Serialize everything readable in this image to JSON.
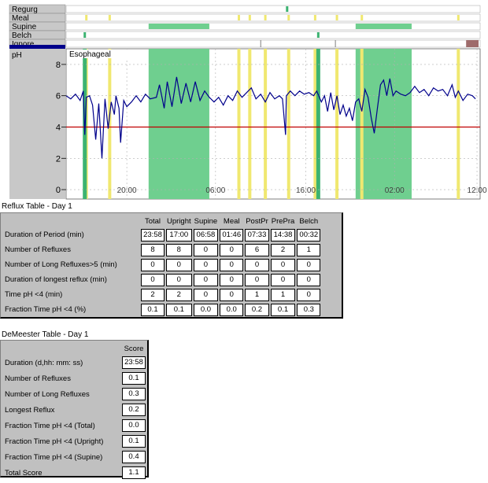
{
  "colors": {
    "event_green": "#3cb371",
    "period_green": "#6fcf8f",
    "meal_yellow": "#f0e870",
    "trace": "#00008b",
    "threshold": "#c00000",
    "ignore_mark": "#9e6b6b",
    "selected_row": "#00008b"
  },
  "event_rows": [
    {
      "label": "Regurg"
    },
    {
      "label": "Meal"
    },
    {
      "label": "Supine"
    },
    {
      "label": "Belch"
    },
    {
      "label": "Ignore"
    }
  ],
  "chart_data": {
    "type": "line",
    "series_label": "pH",
    "channel_label": "Esophageal",
    "ylim": [
      -0.6,
      9
    ],
    "yticks": [
      0,
      2,
      4,
      6,
      8
    ],
    "threshold": 4,
    "x_range_hours": [
      0,
      24
    ],
    "x_tick_labels": [
      {
        "label": "20:00",
        "hour": 3.9
      },
      {
        "label": "06:00",
        "hour": 9.6
      },
      {
        "label": "16:00",
        "hour": 15.4
      },
      {
        "label": "02:00",
        "hour": 21.1
      },
      {
        "label": "12:00",
        "hour": 26.4
      }
    ],
    "supine_periods": [
      [
        5.3,
        9.2
      ],
      [
        18.6,
        22.2
      ]
    ],
    "meal_markers": [
      1.3,
      2.8,
      11.1,
      11.8,
      12.8,
      14.3,
      16.0,
      17.4,
      19.0,
      25.2
    ],
    "reflux_markers": [
      1.2,
      16.2
    ],
    "regurg_markers": [
      14.2
    ],
    "belch_markers": [
      1.2,
      16.2
    ],
    "ignore_periods": [
      [
        25.7,
        26.5
      ]
    ],
    "trace": [
      [
        0.0,
        6.0
      ],
      [
        0.3,
        5.8
      ],
      [
        0.6,
        6.1
      ],
      [
        0.9,
        5.7
      ],
      [
        1.1,
        6.3
      ],
      [
        1.2,
        3.5
      ],
      [
        1.3,
        5.9
      ],
      [
        1.5,
        6.0
      ],
      [
        1.7,
        5.4
      ],
      [
        1.9,
        3.2
      ],
      [
        2.1,
        5.5
      ],
      [
        2.3,
        2.0
      ],
      [
        2.5,
        5.8
      ],
      [
        2.7,
        3.9
      ],
      [
        2.9,
        5.6
      ],
      [
        3.1,
        4.8
      ],
      [
        3.2,
        6.0
      ],
      [
        3.4,
        5.2
      ],
      [
        3.5,
        3.0
      ],
      [
        3.7,
        5.7
      ],
      [
        3.9,
        5.3
      ],
      [
        4.2,
        5.6
      ],
      [
        4.5,
        6.0
      ],
      [
        4.8,
        5.6
      ],
      [
        5.1,
        6.1
      ],
      [
        5.4,
        5.8
      ],
      [
        5.8,
        5.9
      ],
      [
        6.0,
        6.7
      ],
      [
        6.3,
        5.2
      ],
      [
        6.5,
        6.9
      ],
      [
        6.8,
        5.3
      ],
      [
        7.1,
        7.2
      ],
      [
        7.4,
        5.5
      ],
      [
        7.7,
        6.8
      ],
      [
        8.0,
        5.6
      ],
      [
        8.3,
        6.9
      ],
      [
        8.6,
        5.7
      ],
      [
        8.9,
        6.3
      ],
      [
        9.2,
        5.9
      ],
      [
        9.5,
        5.6
      ],
      [
        9.8,
        5.9
      ],
      [
        10.1,
        5.4
      ],
      [
        10.4,
        6.0
      ],
      [
        10.7,
        5.7
      ],
      [
        11.0,
        6.3
      ],
      [
        11.3,
        5.9
      ],
      [
        11.6,
        6.2
      ],
      [
        11.9,
        6.5
      ],
      [
        12.2,
        5.8
      ],
      [
        12.5,
        6.1
      ],
      [
        12.8,
        5.6
      ],
      [
        13.1,
        6.2
      ],
      [
        13.4,
        5.8
      ],
      [
        13.7,
        6.0
      ],
      [
        13.9,
        5.8
      ],
      [
        14.1,
        3.5
      ],
      [
        14.15,
        6.0
      ],
      [
        14.4,
        6.3
      ],
      [
        14.7,
        6.0
      ],
      [
        15.0,
        6.3
      ],
      [
        15.3,
        6.1
      ],
      [
        15.6,
        6.2
      ],
      [
        15.9,
        6.0
      ],
      [
        16.1,
        6.3
      ],
      [
        16.4,
        5.6
      ],
      [
        16.6,
        6.0
      ],
      [
        16.8,
        5.0
      ],
      [
        17.0,
        6.2
      ],
      [
        17.2,
        5.1
      ],
      [
        17.4,
        6.0
      ],
      [
        17.6,
        4.8
      ],
      [
        17.8,
        5.4
      ],
      [
        18.0,
        4.7
      ],
      [
        18.2,
        5.2
      ],
      [
        18.4,
        4.4
      ],
      [
        18.6,
        5.6
      ],
      [
        18.8,
        5.8
      ],
      [
        19.0,
        5.0
      ],
      [
        19.2,
        6.4
      ],
      [
        19.4,
        5.9
      ],
      [
        19.6,
        4.6
      ],
      [
        19.8,
        3.6
      ],
      [
        20.0,
        5.2
      ],
      [
        20.2,
        6.7
      ],
      [
        20.4,
        7.0
      ],
      [
        20.6,
        6.0
      ],
      [
        20.8,
        7.1
      ],
      [
        21.0,
        6.0
      ],
      [
        21.2,
        6.3
      ],
      [
        21.5,
        6.1
      ],
      [
        21.8,
        6.0
      ],
      [
        22.1,
        6.2
      ],
      [
        22.4,
        6.6
      ],
      [
        22.7,
        6.2
      ],
      [
        23.0,
        6.4
      ],
      [
        23.3,
        6.0
      ],
      [
        23.6,
        6.5
      ],
      [
        23.9,
        6.3
      ],
      [
        24.2,
        6.4
      ],
      [
        24.5,
        6.0
      ],
      [
        24.8,
        6.7
      ],
      [
        25.0,
        5.9
      ],
      [
        25.2,
        6.3
      ],
      [
        25.5,
        5.7
      ],
      [
        25.8,
        6.1
      ],
      [
        26.1,
        6.0
      ],
      [
        26.3,
        5.8
      ]
    ]
  },
  "reflux_table": {
    "title": "Reflux Table - Day 1",
    "columns": [
      "Total",
      "Upright",
      "Supine",
      "Meal",
      "PostPr",
      "PrePra",
      "Belch"
    ],
    "rows": [
      {
        "label": "Duration of Period (min)",
        "values": [
          "23:58",
          "17:00",
          "06:58",
          "01:46",
          "07:33",
          "14:38",
          "00:32"
        ]
      },
      {
        "label": "Number of Refluxes",
        "values": [
          "8",
          "8",
          "0",
          "0",
          "6",
          "2",
          "1"
        ]
      },
      {
        "label": "Number of Long Refluxes>5  (min)",
        "values": [
          "0",
          "0",
          "0",
          "0",
          "0",
          "0",
          "0"
        ]
      },
      {
        "label": "Duration of longest reflux (min)",
        "values": [
          "0",
          "0",
          "0",
          "0",
          "0",
          "0",
          "0"
        ]
      },
      {
        "label": "Time pH <4  (min)",
        "values": [
          "2",
          "2",
          "0",
          "0",
          "1",
          "1",
          "0"
        ]
      },
      {
        "label": "Fraction Time pH <4  (%)",
        "values": [
          "0.1",
          "0.1",
          "0.0",
          "0.0",
          "0.2",
          "0.1",
          "0.3"
        ]
      }
    ]
  },
  "demeester_table": {
    "title": "DeMeester Table - Day 1",
    "column": "Score",
    "rows": [
      {
        "label": "Duration (d,hh: mm: ss)",
        "value": "23:58"
      },
      {
        "label": "Number of Refluxes",
        "value": "0.1"
      },
      {
        "label": "Number of Long Refluxes",
        "value": "0.3"
      },
      {
        "label": "Longest Reflux",
        "value": "0.2"
      },
      {
        "label": "Fraction Time pH <4  (Total)",
        "value": "0.0"
      },
      {
        "label": "Fraction Time pH <4  (Upright)",
        "value": "0.1"
      },
      {
        "label": "Fraction Time pH <4  (Supine)",
        "value": "0.4"
      },
      {
        "label": "Total Score",
        "value": "1.1"
      }
    ]
  }
}
